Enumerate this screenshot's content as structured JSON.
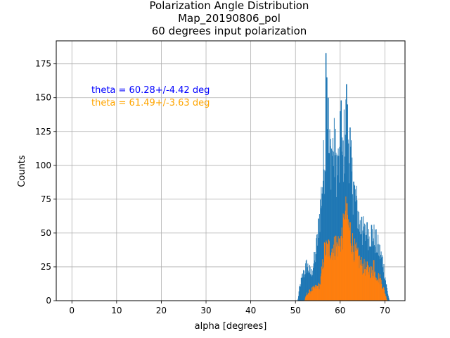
{
  "chart_data": {
    "type": "bar",
    "title_lines": [
      "Polarization Angle Distribution",
      "Map_20190806_pol",
      "60 degrees input polarization"
    ],
    "xlabel": "alpha [degrees]",
    "ylabel": "Counts",
    "xlim": [
      -3.5,
      74.5
    ],
    "ylim": [
      0,
      192
    ],
    "xticks": [
      0,
      10,
      20,
      30,
      40,
      50,
      60,
      70
    ],
    "yticks": [
      0,
      25,
      50,
      75,
      100,
      125,
      150,
      175
    ],
    "grid": true,
    "bin_width": 0.1,
    "annotations": [
      {
        "text": "theta = 60.28+/-4.42 deg",
        "color": "#0000ff"
      },
      {
        "text": "theta = 61.49+/-3.63 deg",
        "color": "#ffa500"
      }
    ],
    "series": [
      {
        "color": "#1f77b4",
        "range": [
          50.5,
          71.0
        ],
        "envelope": [
          [
            50.5,
            0
          ],
          [
            50.8,
            8
          ],
          [
            51.5,
            18
          ],
          [
            52.5,
            27
          ],
          [
            53.5,
            20
          ],
          [
            54.5,
            35
          ],
          [
            55.5,
            68
          ],
          [
            56.5,
            110
          ],
          [
            57.0,
            148
          ],
          [
            57.5,
            110
          ],
          [
            58.5,
            115
          ],
          [
            59.5,
            100
          ],
          [
            60.5,
            105
          ],
          [
            61.0,
            125
          ],
          [
            61.5,
            140
          ],
          [
            62.5,
            95
          ],
          [
            63.5,
            75
          ],
          [
            64.5,
            55
          ],
          [
            65.5,
            50
          ],
          [
            66.5,
            52
          ],
          [
            67.5,
            48
          ],
          [
            68.5,
            40
          ],
          [
            69.5,
            30
          ],
          [
            70.5,
            8
          ],
          [
            71.0,
            0
          ]
        ],
        "spikes": [
          [
            56.8,
            183
          ],
          [
            57.0,
            165
          ],
          [
            57.3,
            150
          ],
          [
            60.0,
            140
          ],
          [
            60.2,
            148
          ],
          [
            61.4,
            160
          ],
          [
            61.6,
            145
          ],
          [
            62.2,
            128
          ],
          [
            63.0,
            88
          ],
          [
            64.8,
            62
          ],
          [
            66.0,
            58
          ],
          [
            67.0,
            56
          ]
        ]
      },
      {
        "color": "#ff7f0e",
        "range": [
          52.0,
          70.5
        ],
        "envelope": [
          [
            52.0,
            0
          ],
          [
            52.5,
            5
          ],
          [
            53.5,
            8
          ],
          [
            54.5,
            10
          ],
          [
            55.5,
            12
          ],
          [
            56.0,
            25
          ],
          [
            56.5,
            38
          ],
          [
            57.5,
            40
          ],
          [
            58.5,
            40
          ],
          [
            59.5,
            42
          ],
          [
            60.5,
            50
          ],
          [
            61.3,
            66
          ],
          [
            62.0,
            54
          ],
          [
            63.0,
            40
          ],
          [
            64.0,
            32
          ],
          [
            65.0,
            26
          ],
          [
            66.0,
            24
          ],
          [
            67.0,
            22
          ],
          [
            68.0,
            20
          ],
          [
            69.0,
            16
          ],
          [
            70.0,
            6
          ],
          [
            70.5,
            0
          ]
        ],
        "spikes": [
          [
            59.0,
            48
          ],
          [
            61.0,
            60
          ],
          [
            61.5,
            72
          ],
          [
            62.2,
            58
          ],
          [
            67.5,
            30
          ]
        ]
      }
    ]
  }
}
